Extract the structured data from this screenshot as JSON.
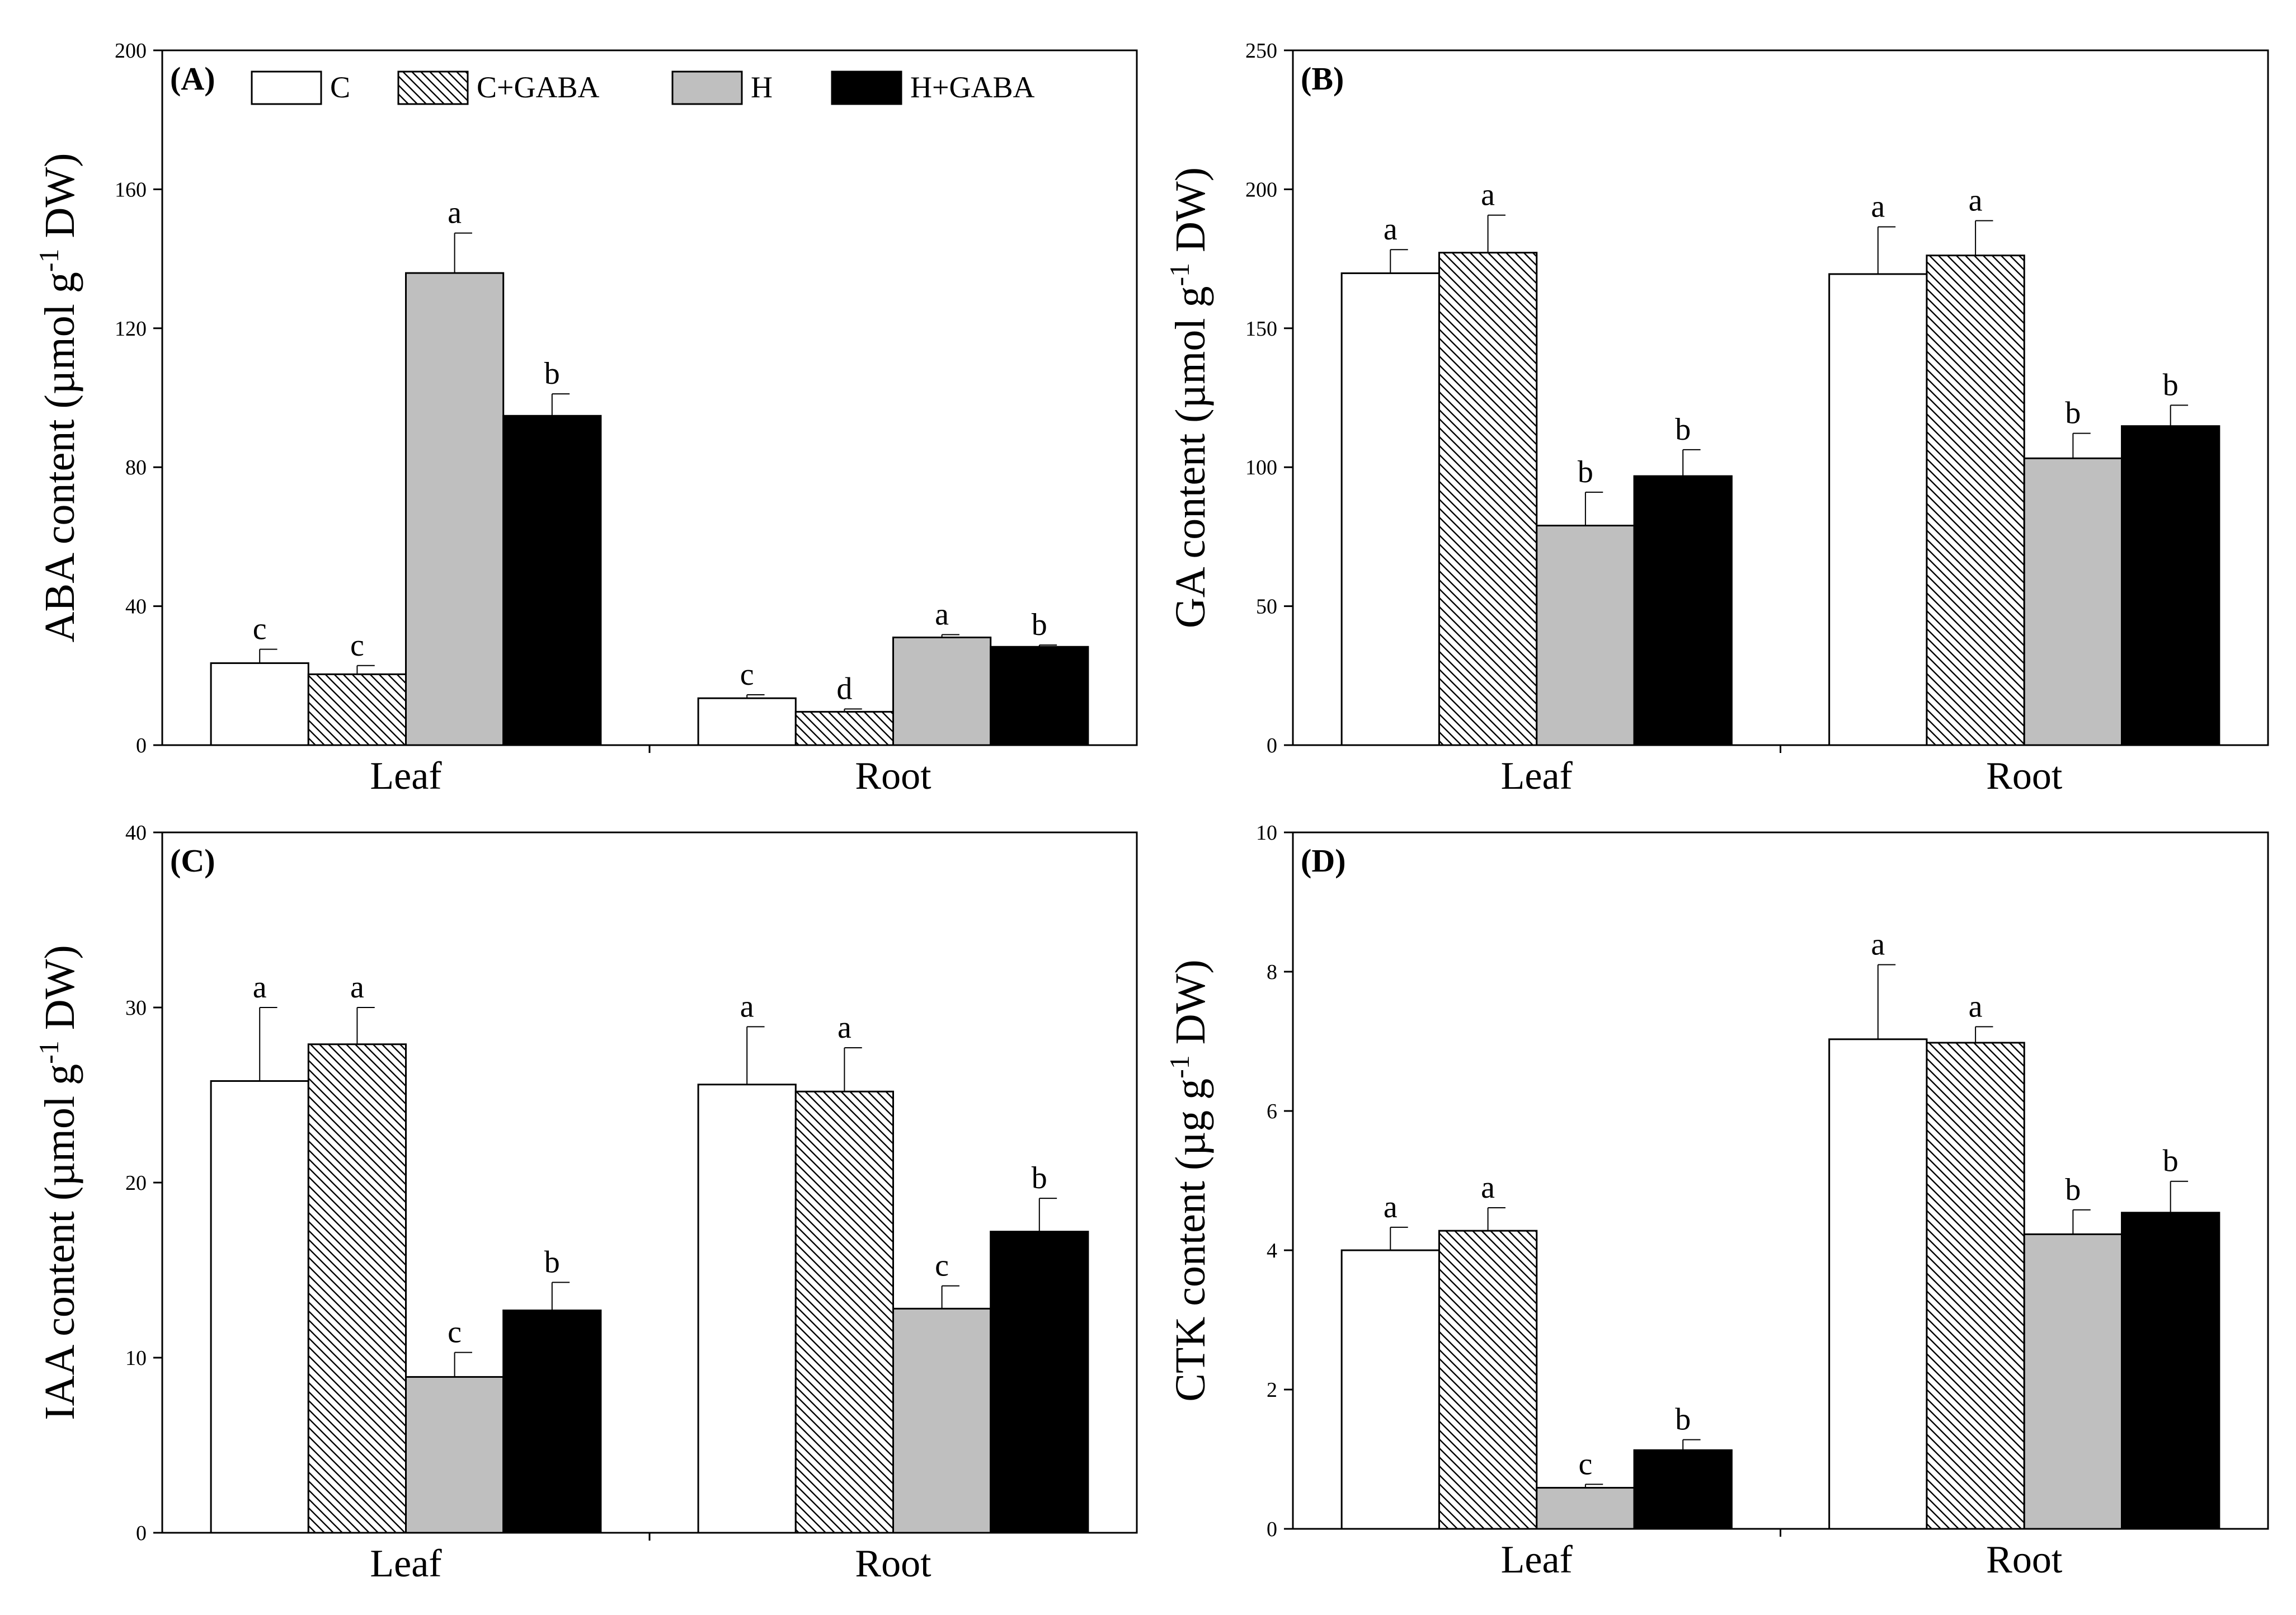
{
  "figure": {
    "legend_entries": [
      {
        "label": "C",
        "pattern": "open"
      },
      {
        "label": "C+GABA",
        "pattern": "hatch"
      },
      {
        "label": "H",
        "pattern": "gray"
      },
      {
        "label": "H+GABA",
        "pattern": "black"
      }
    ],
    "colors": {
      "open": "#ffffff",
      "gray": "#bfbfbf",
      "black": "#000000",
      "axis": "#000000"
    }
  },
  "chart_data": [
    {
      "panel_label": "(A)",
      "type": "bar",
      "ylabel_main": "ABA content (µmol g",
      "ylabel_sup": "-1",
      "ylabel_tail": " DW)",
      "ylim": [
        0,
        200
      ],
      "yticks": [
        0,
        40,
        80,
        120,
        160,
        200
      ],
      "categories": [
        "Leaf",
        "Root"
      ],
      "series": [
        {
          "name": "C",
          "values": [
            23.6,
            13.5
          ],
          "errors": [
            4.0,
            1.0
          ],
          "letters": [
            "c",
            "c"
          ]
        },
        {
          "name": "C+GABA",
          "values": [
            20.4,
            9.6
          ],
          "errors": [
            2.5,
            0.8
          ],
          "letters": [
            "c",
            "d"
          ]
        },
        {
          "name": "H",
          "values": [
            135.9,
            31.0
          ],
          "errors": [
            11.5,
            0.8
          ],
          "letters": [
            "a",
            "a"
          ]
        },
        {
          "name": "H+GABA",
          "values": [
            94.8,
            28.3
          ],
          "errors": [
            6.3,
            0.5
          ],
          "letters": [
            "b",
            "b"
          ]
        }
      ]
    },
    {
      "panel_label": "(B)",
      "type": "bar",
      "ylabel_main": "GA content (µmol g",
      "ylabel_sup": "-1",
      "ylabel_tail": " DW)",
      "ylim": [
        0,
        250
      ],
      "yticks": [
        0,
        50,
        100,
        150,
        200,
        250
      ],
      "categories": [
        "Leaf",
        "Root"
      ],
      "series": [
        {
          "name": "C",
          "values": [
            169.8,
            169.5
          ],
          "errors": [
            8.5,
            17.0
          ],
          "letters": [
            "a",
            "a"
          ]
        },
        {
          "name": "C+GABA",
          "values": [
            177.2,
            176.2
          ],
          "errors": [
            13.5,
            12.5
          ],
          "letters": [
            "a",
            "a"
          ]
        },
        {
          "name": "H",
          "values": [
            79.0,
            103.2
          ],
          "errors": [
            12.0,
            9.0
          ],
          "letters": [
            "b",
            "b"
          ]
        },
        {
          "name": "H+GABA",
          "values": [
            96.8,
            114.8
          ],
          "errors": [
            9.5,
            7.5
          ],
          "letters": [
            "b",
            "b"
          ]
        }
      ]
    },
    {
      "panel_label": "(C)",
      "type": "bar",
      "ylabel_main": "IAA content (µmol g",
      "ylabel_sup": "-1",
      "ylabel_tail": " DW)",
      "ylim": [
        0,
        40
      ],
      "yticks": [
        0,
        10,
        20,
        30,
        40
      ],
      "categories": [
        "Leaf",
        "Root"
      ],
      "series": [
        {
          "name": "C",
          "values": [
            25.8,
            25.6
          ],
          "errors": [
            4.2,
            3.3
          ],
          "letters": [
            "a",
            "a"
          ]
        },
        {
          "name": "C+GABA",
          "values": [
            27.9,
            25.2
          ],
          "errors": [
            2.1,
            2.5
          ],
          "letters": [
            "a",
            "a"
          ]
        },
        {
          "name": "H",
          "values": [
            8.9,
            12.8
          ],
          "errors": [
            1.4,
            1.3
          ],
          "letters": [
            "c",
            "c"
          ]
        },
        {
          "name": "H+GABA",
          "values": [
            12.7,
            17.2
          ],
          "errors": [
            1.6,
            1.9
          ],
          "letters": [
            "b",
            "b"
          ]
        }
      ]
    },
    {
      "panel_label": "(D)",
      "type": "bar",
      "ylabel_main": "CTK content (µg g",
      "ylabel_sup": "-1",
      "ylabel_tail": " DW)",
      "ylim": [
        0,
        10
      ],
      "yticks": [
        0,
        2,
        4,
        6,
        8,
        10
      ],
      "categories": [
        "Leaf",
        "Root"
      ],
      "series": [
        {
          "name": "C",
          "values": [
            4.0,
            7.03
          ],
          "errors": [
            0.33,
            1.07
          ],
          "letters": [
            "a",
            "a"
          ]
        },
        {
          "name": "C+GABA",
          "values": [
            4.28,
            6.98
          ],
          "errors": [
            0.33,
            0.23
          ],
          "letters": [
            "a",
            "a"
          ]
        },
        {
          "name": "H",
          "values": [
            0.59,
            4.23
          ],
          "errors": [
            0.05,
            0.35
          ],
          "letters": [
            "c",
            "b"
          ]
        },
        {
          "name": "H+GABA",
          "values": [
            1.13,
            4.54
          ],
          "errors": [
            0.15,
            0.45
          ],
          "letters": [
            "b",
            "b"
          ]
        }
      ]
    }
  ]
}
